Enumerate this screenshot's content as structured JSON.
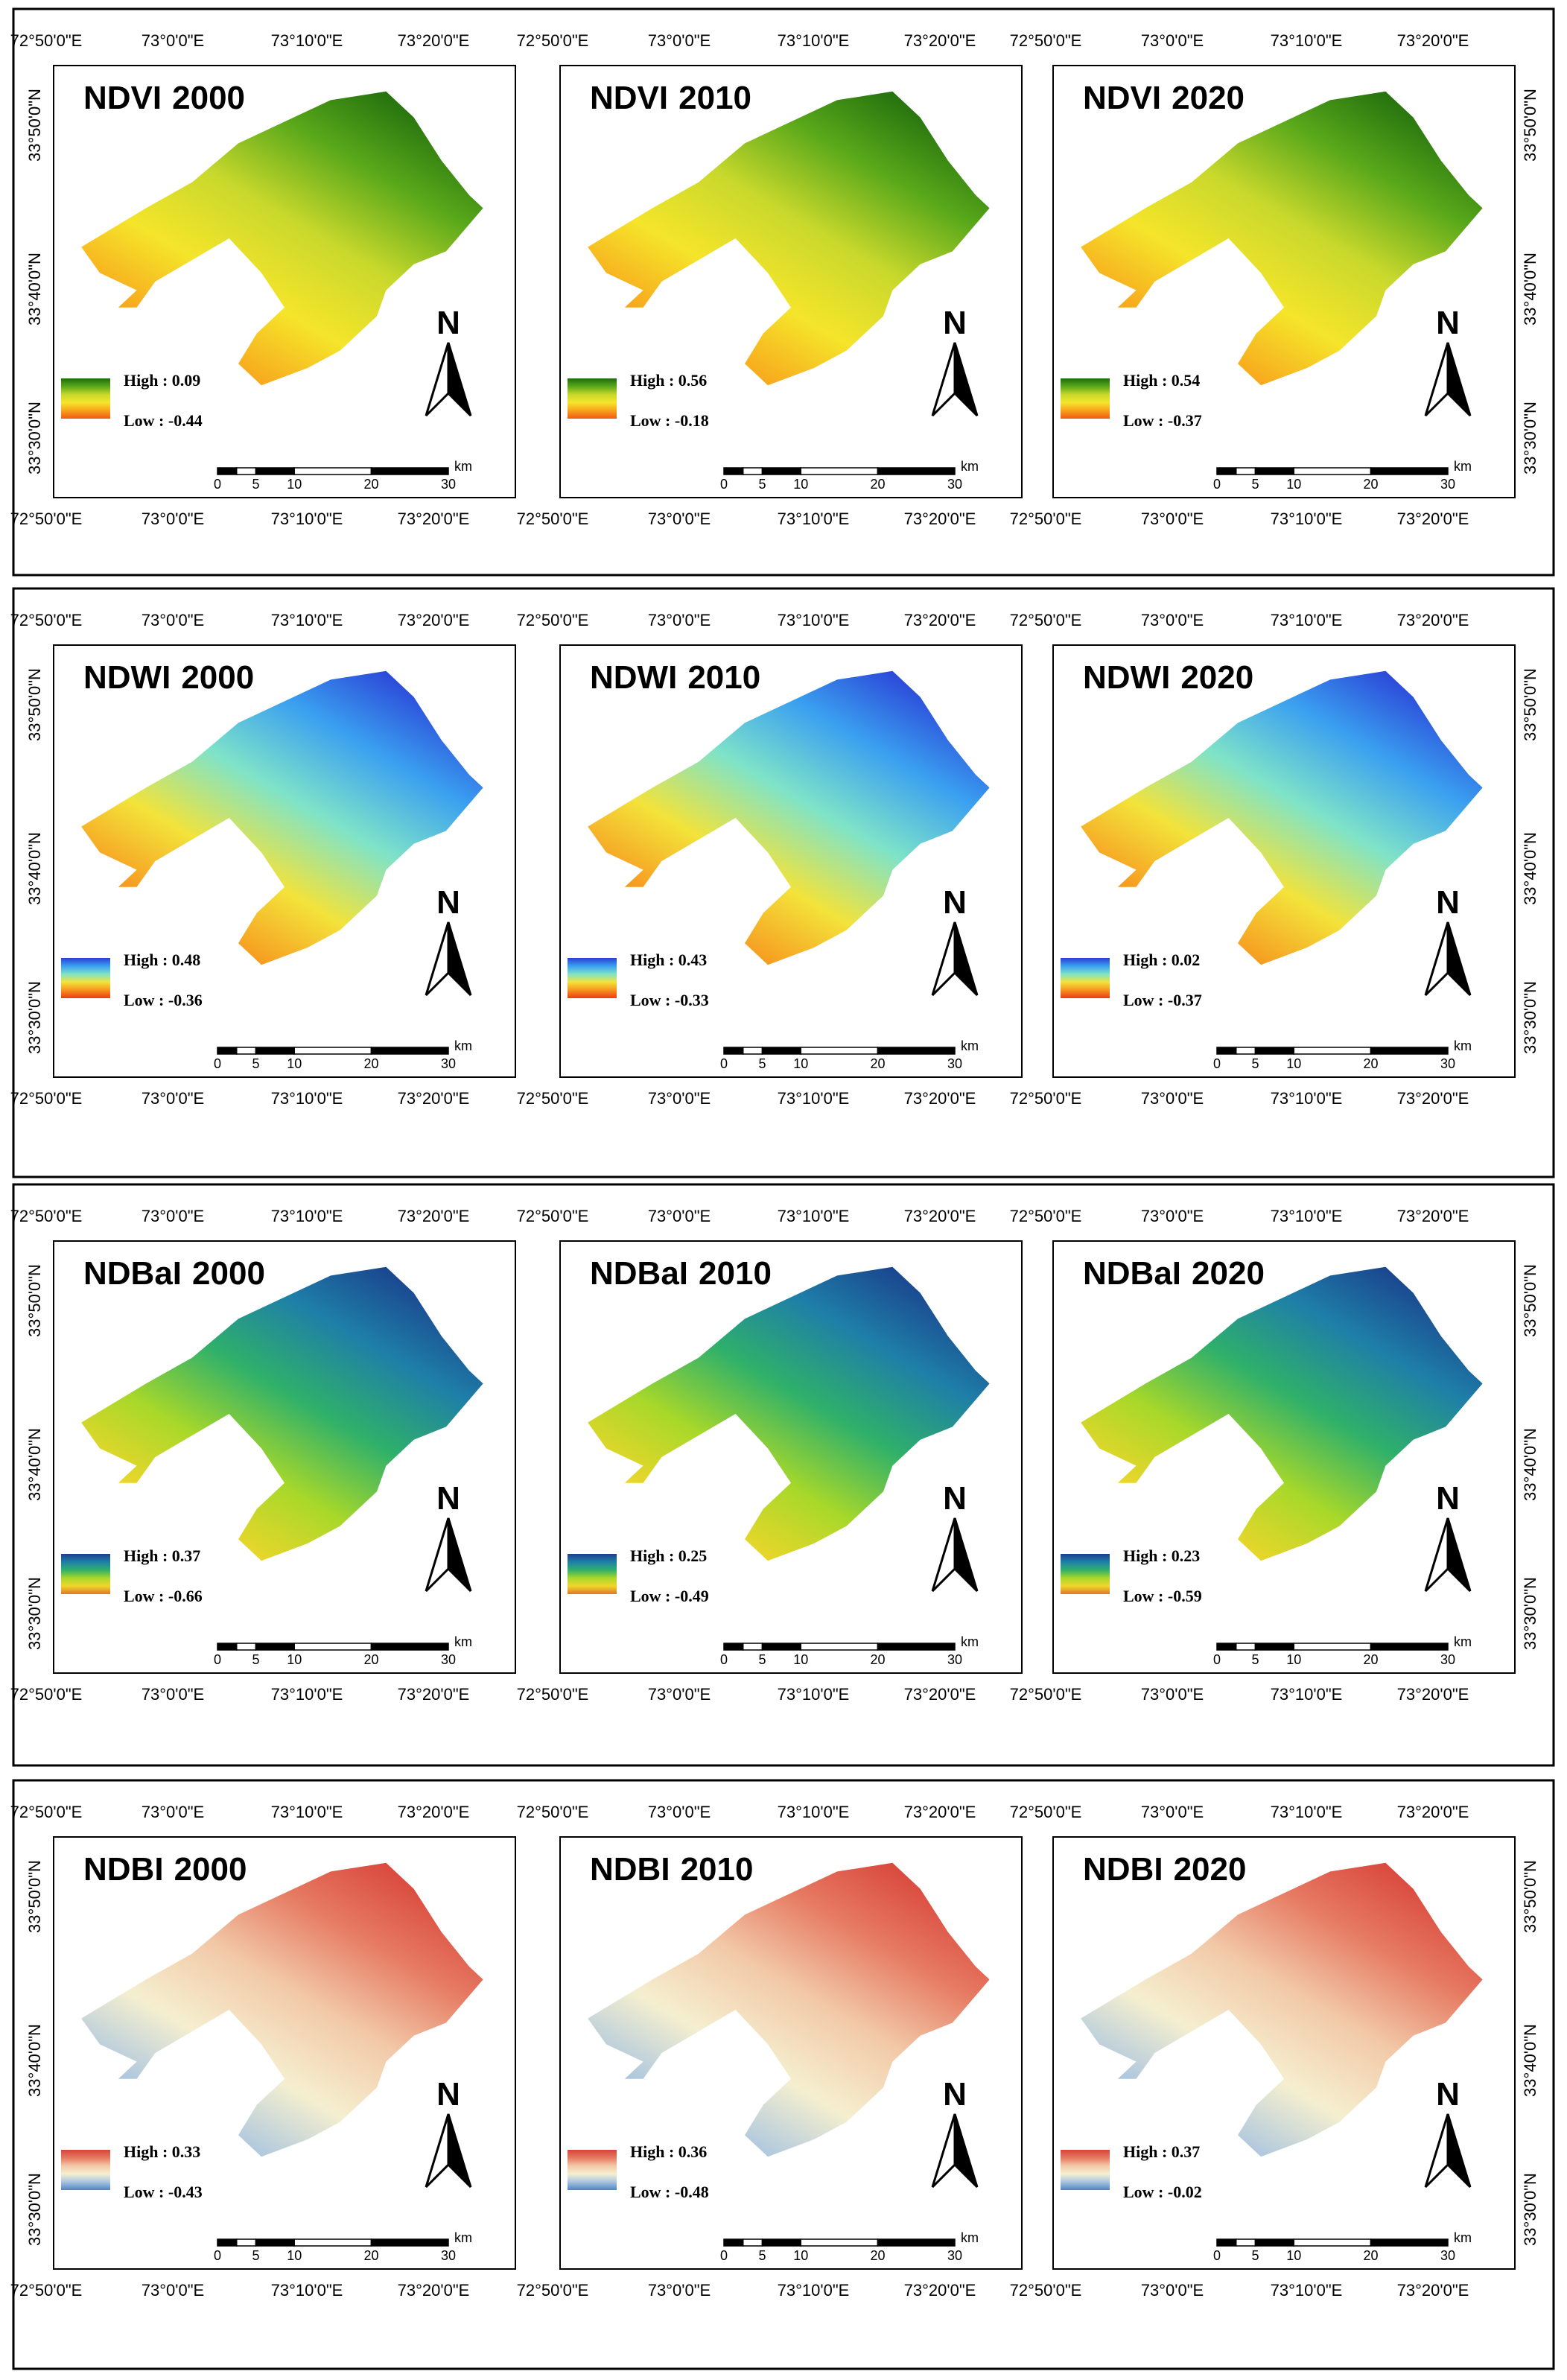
{
  "coordinates": {
    "top_lon": [
      "72°50'0\"E",
      "73°0'0\"E",
      "73°10'0\"E",
      "73°20'0\"E"
    ],
    "bottom_lon": [
      "72°50'0\"E",
      "73°0'0\"E",
      "73°10'0\"E",
      "73°20'0\"E"
    ],
    "lat": [
      "33°50'0\"N",
      "33°40'0\"N",
      "33°30'0\"N"
    ]
  },
  "scale_bar": {
    "ticks": [
      "0",
      "5",
      "10",
      "20",
      "30"
    ],
    "unit": "km"
  },
  "north_label": "N",
  "rows": [
    {
      "index": "NDVI",
      "palette": [
        "#1f6b0d",
        "#59a81a",
        "#c8d82c",
        "#f5e52a",
        "#f8a21c",
        "#f05a12"
      ],
      "maps": [
        {
          "title_index": "NDVI",
          "year": "2000",
          "high": "High : 0.09",
          "low": "Low : -0.44"
        },
        {
          "title_index": "NDVI",
          "year": "2010",
          "high": "High : 0.56",
          "low": "Low : -0.18"
        },
        {
          "title_index": "NDVI",
          "year": "2020",
          "high": "High : 0.54",
          "low": "Low : -0.37"
        }
      ]
    },
    {
      "index": "NDWI",
      "palette": [
        "#2a3fd6",
        "#3aa0f0",
        "#7fe3c8",
        "#f3e33a",
        "#f7941e",
        "#ee3a14"
      ],
      "maps": [
        {
          "title_index": "NDWI",
          "year": "2000",
          "high": "High : 0.48",
          "low": "Low : -0.36"
        },
        {
          "title_index": "NDWI",
          "year": "2010",
          "high": "High : 0.43",
          "low": "Low : -0.33"
        },
        {
          "title_index": "NDWI",
          "year": "2020",
          "high": "High : 0.02",
          "low": "Low : -0.37"
        }
      ]
    },
    {
      "index": "NDBaI",
      "palette": [
        "#1a3f8c",
        "#1e7fa8",
        "#2fb06a",
        "#a8d82a",
        "#f0d62a",
        "#e0742a"
      ],
      "maps": [
        {
          "title_index": "NDBaI",
          "year": "2000",
          "high": "High : 0.37",
          "low": "Low : -0.66"
        },
        {
          "title_index": "NDBaI",
          "year": "2010",
          "high": "High : 0.25",
          "low": "Low : -0.49"
        },
        {
          "title_index": "NDBaI",
          "year": "2020",
          "high": "High : 0.23",
          "low": "Low : -0.59"
        }
      ]
    },
    {
      "index": "NDBI",
      "palette": [
        "#d8433a",
        "#e67a62",
        "#f2c9a8",
        "#f5efcf",
        "#a8c4e0",
        "#4f84c2"
      ],
      "maps": [
        {
          "title_index": "NDBI",
          "year": "2000",
          "high": "High : 0.33",
          "low": "Low : -0.43"
        },
        {
          "title_index": "NDBI",
          "year": "2010",
          "high": "High : 0.36",
          "low": "Low : -0.48"
        },
        {
          "title_index": "NDBI",
          "year": "2020",
          "high": "High : 0.37",
          "low": "Low : -0.02"
        }
      ]
    }
  ]
}
